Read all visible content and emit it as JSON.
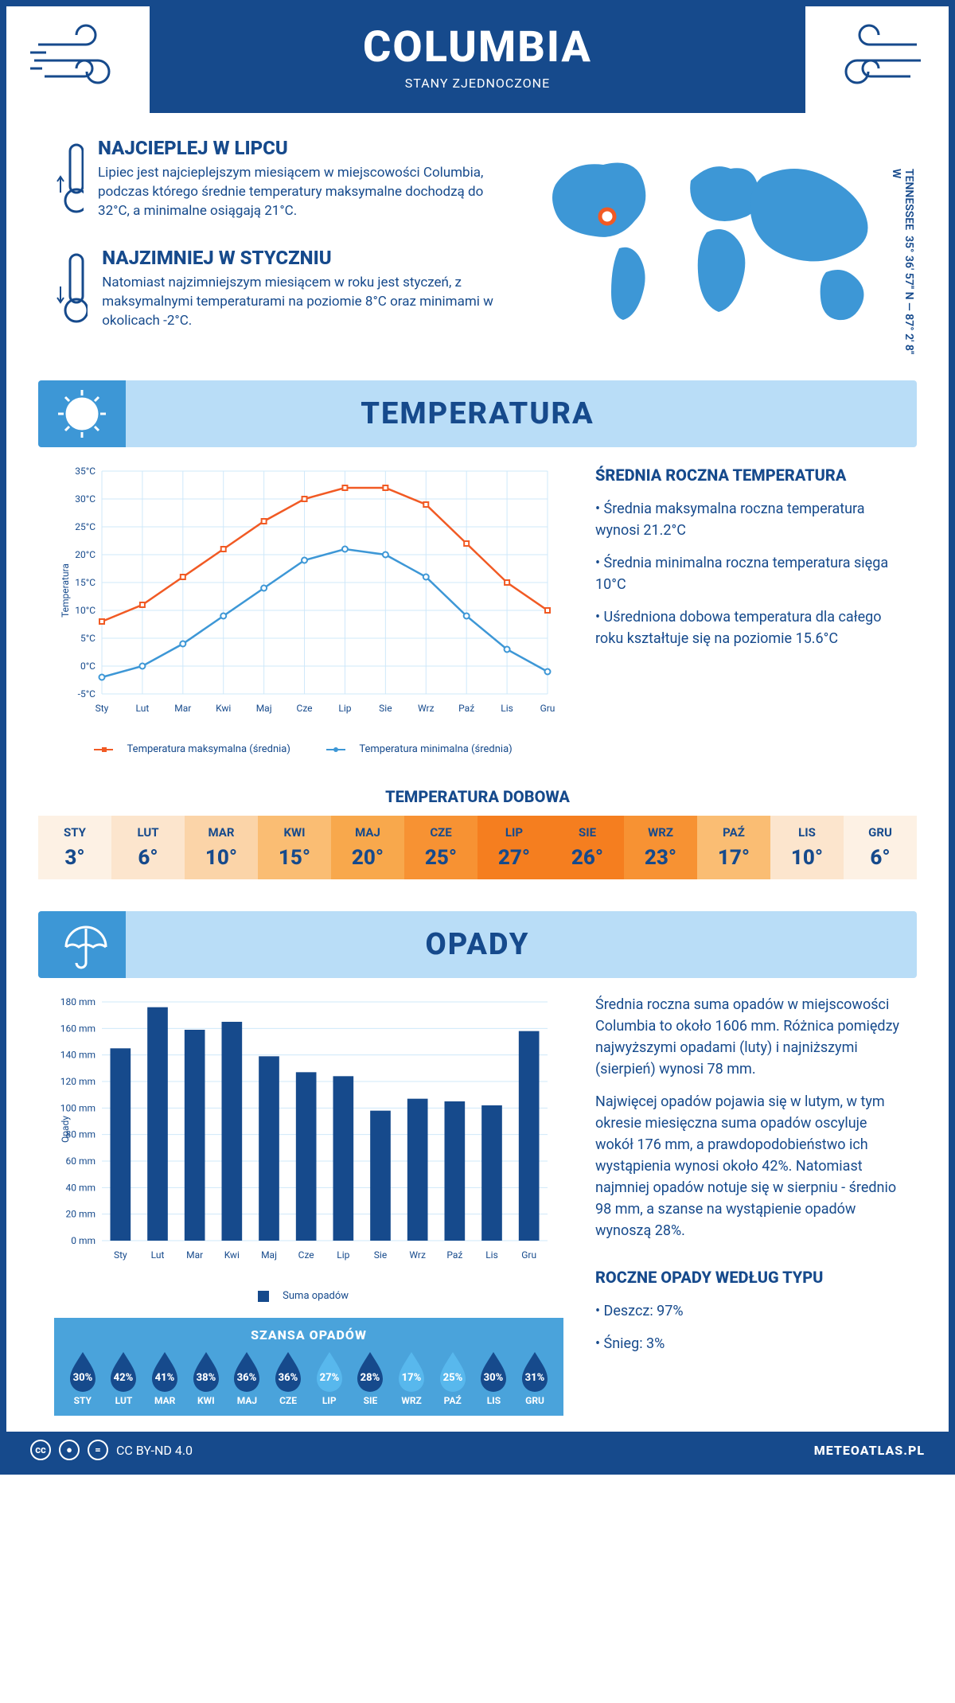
{
  "header": {
    "city": "COLUMBIA",
    "country": "STANY ZJEDNOCZONE"
  },
  "coords": {
    "region": "TENNESSEE",
    "lat": "35° 36' 57\" N",
    "lon": "87° 2' 8\" W"
  },
  "hot": {
    "title": "NAJCIEPLEJ W LIPCU",
    "text": "Lipiec jest najcieplejszym miesiącem w miejscowości Columbia, podczas którego średnie temperatury maksymalne dochodzą do 32°C, a minimalne osiągają 21°C."
  },
  "cold": {
    "title": "NAJZIMNIEJ W STYCZNIU",
    "text": "Natomiast najzimniejszym miesiącem w roku jest styczeń, z maksymalnymi temperaturami na poziomie 8°C oraz minimami w okolicach -2°C."
  },
  "sections": {
    "temp": "TEMPERATURA",
    "precip": "OPADY"
  },
  "months": [
    "Sty",
    "Lut",
    "Mar",
    "Kwi",
    "Maj",
    "Cze",
    "Lip",
    "Sie",
    "Wrz",
    "Paź",
    "Lis",
    "Gru"
  ],
  "temp_chart": {
    "type": "line",
    "y_label": "Temperatura",
    "ylim": [
      -5,
      35
    ],
    "ytick_step": 5,
    "max_series": [
      8,
      11,
      16,
      21,
      26,
      30,
      32,
      32,
      29,
      22,
      15,
      10
    ],
    "min_series": [
      -2,
      0,
      4,
      9,
      14,
      19,
      21,
      20,
      16,
      9,
      3,
      -1
    ],
    "max_color": "#f15a24",
    "min_color": "#3d97d6",
    "grid_color": "#cfe8fa",
    "bg": "#ffffff",
    "legend_max": "Temperatura maksymalna (średnia)",
    "legend_min": "Temperatura minimalna (średnia)"
  },
  "temp_side": {
    "title": "ŚREDNIA ROCZNA TEMPERATURA",
    "bullets": [
      "Średnia maksymalna roczna temperatura wynosi 21.2°C",
      "Średnia minimalna roczna temperatura sięga 10°C",
      "Uśredniona dobowa temperatura dla całego roku kształtuje się na poziomie 15.6°C"
    ]
  },
  "daily": {
    "title": "TEMPERATURA DOBOWA",
    "values": [
      3,
      6,
      10,
      15,
      20,
      25,
      27,
      26,
      23,
      17,
      10,
      6
    ],
    "colors": [
      "#fdf1e4",
      "#fce5cd",
      "#fbd4a8",
      "#fabd73",
      "#f8a84c",
      "#f79233",
      "#f57e1f",
      "#f57e1f",
      "#f79233",
      "#fabd73",
      "#fce5cd",
      "#fdf1e4"
    ]
  },
  "precip_chart": {
    "type": "bar",
    "y_label": "Opady",
    "ylim": [
      0,
      180
    ],
    "ytick_step": 20,
    "values": [
      145,
      176,
      159,
      165,
      139,
      127,
      124,
      98,
      107,
      105,
      102,
      158
    ],
    "bar_color": "#164a8c",
    "grid_color": "#cfe8fa",
    "legend": "Suma opadów"
  },
  "precip_side": {
    "p1": "Średnia roczna suma opadów w miejscowości Columbia to około 1606 mm. Różnica pomiędzy najwyższymi opadami (luty) i najniższymi (sierpień) wynosi 78 mm.",
    "p2": "Najwięcej opadów pojawia się w lutym, w tym okresie miesięczna suma opadów oscyluje wokół 176 mm, a prawdopodobieństwo ich wystąpienia wynosi około 42%. Natomiast najmniej opadów notuje się w sierpniu - średnio 98 mm, a szanse na wystąpienie opadów wynoszą 28%.",
    "type_title": "ROCZNE OPADY WEDŁUG TYPU",
    "type_bullets": [
      "Deszcz: 97%",
      "Śnieg: 3%"
    ]
  },
  "chance": {
    "title": "SZANSA OPADÓW",
    "values": [
      30,
      42,
      41,
      38,
      36,
      36,
      27,
      28,
      17,
      25,
      30,
      31
    ],
    "dark": "#164a8c",
    "light": "#58b8ed"
  },
  "footer": {
    "license": "CC BY-ND 4.0",
    "site": "METEOATLAS.PL"
  }
}
